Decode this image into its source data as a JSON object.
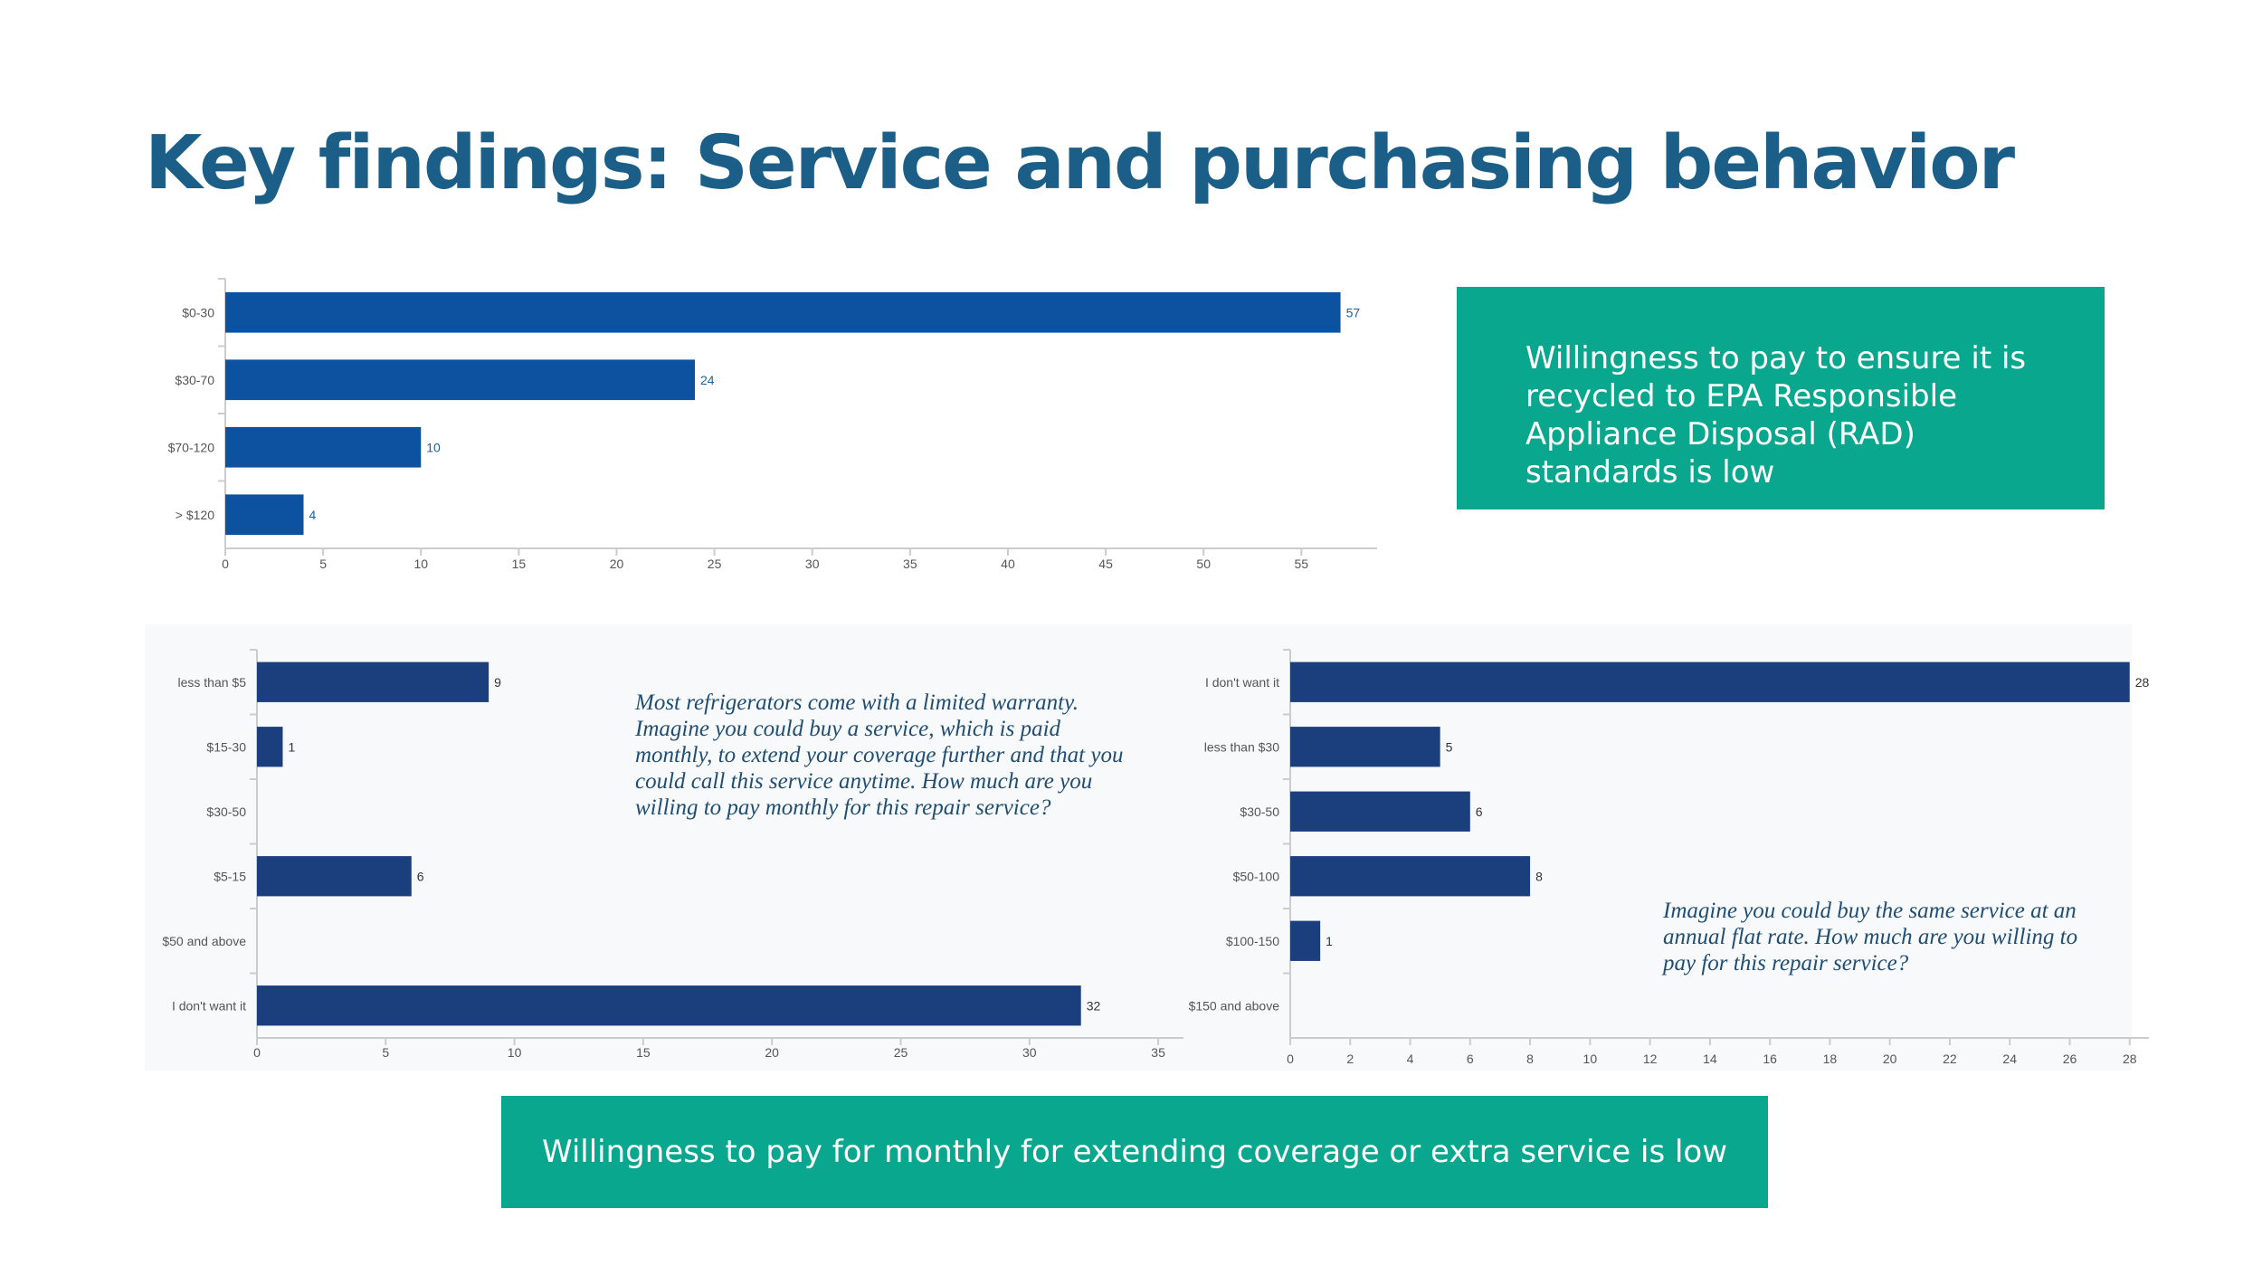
{
  "title": "Key findings: Service and purchasing behavior",
  "colors": {
    "title": "#1b5f88",
    "teal": "#0aa78f",
    "bar_top": "#0d52a0",
    "bar": "#1b3f7d",
    "value_top": "#1b5fa8",
    "axis_text": "#555555"
  },
  "callouts": {
    "top": "Willingness to pay to ensure it is recycled to EPA Responsible Appliance Disposal (RAD) standards is low",
    "bottom": "Willingness to pay for monthly for extending coverage or extra service is low"
  },
  "questions": {
    "monthly": "Most refrigerators come with a limited warranty. Imagine you could buy a service, which is paid monthly, to extend your coverage further and that you could call this service anytime. How much are you willing to pay monthly for this repair service?",
    "annual": "Imagine you could buy the same service at an annual flat rate. How much are you willing to pay for this repair service?"
  },
  "chart_data": [
    {
      "type": "bar",
      "orientation": "horizontal",
      "title": "",
      "categories": [
        "$0-30",
        "$30-70",
        "$70-120",
        "> $120"
      ],
      "values": [
        57,
        24,
        10,
        4
      ],
      "xlim": [
        0,
        58.5
      ],
      "ticks": [
        0,
        5,
        10,
        15,
        20,
        25,
        30,
        35,
        40,
        45,
        50,
        55
      ]
    },
    {
      "type": "bar",
      "orientation": "horizontal",
      "title": "",
      "categories": [
        "less than $5",
        "$15-30",
        "$30-50",
        "$5-15",
        "$50 and above",
        "I don't want it"
      ],
      "values": [
        9,
        1,
        0,
        6,
        0,
        32
      ],
      "xlim": [
        0,
        35.7
      ],
      "ticks": [
        0,
        5,
        10,
        15,
        20,
        25,
        30,
        35
      ]
    },
    {
      "type": "bar",
      "orientation": "horizontal",
      "title": "",
      "categories": [
        "I don't want it",
        "less than $30",
        "$30-50",
        "$50-100",
        "$100-150",
        "$150 and above"
      ],
      "values": [
        28,
        5,
        6,
        8,
        1,
        0
      ],
      "xlim": [
        0,
        28.4
      ],
      "ticks": [
        0,
        2,
        4,
        6,
        8,
        10,
        12,
        14,
        16,
        18,
        20,
        22,
        24,
        26,
        28
      ]
    }
  ]
}
